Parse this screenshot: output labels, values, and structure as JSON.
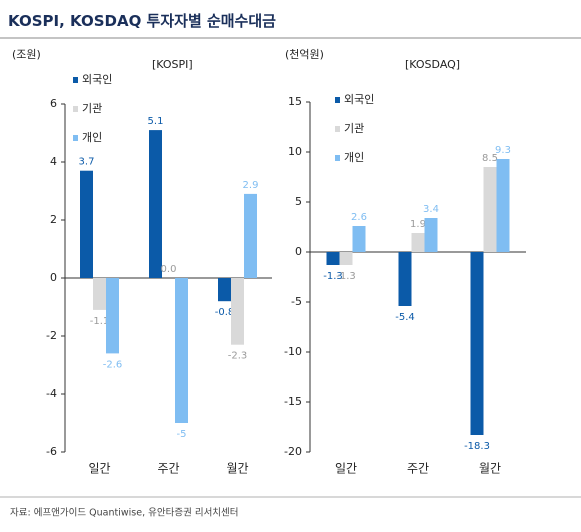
{
  "title": "KOSPI, KOSDAQ 투자자별 순매수대금",
  "source": "자료: 에프앤가이드 Quantiwise, 유안타증권 리서치센터",
  "chart_data": [
    {
      "type": "bar",
      "title": "[KOSPI]",
      "y_label": "(조원)",
      "categories": [
        "일간",
        "주간",
        "월간"
      ],
      "series": [
        {
          "name": "외국인",
          "color": "#0b5aa8",
          "values": [
            3.7,
            5.1,
            -0.8
          ]
        },
        {
          "name": "기관",
          "color": "#d9d9d9",
          "values": [
            -1.1,
            0,
            -2.3
          ],
          "value_labels": [
            "-1.1",
            "0.0",
            "-2.3"
          ]
        },
        {
          "name": "개인",
          "color": "#7fbdf2",
          "values": [
            -2.6,
            -5.0,
            2.9
          ]
        }
      ],
      "ylim": [
        -6,
        6
      ],
      "yticks": [
        -6,
        -4,
        -2,
        0,
        2,
        4,
        6
      ]
    },
    {
      "type": "bar",
      "title": "[KOSDAQ]",
      "y_label": "(천억원)",
      "categories": [
        "일간",
        "주간",
        "월간"
      ],
      "series": [
        {
          "name": "외국인",
          "color": "#0b5aa8",
          "values": [
            -1.3,
            -5.4,
            -18.3
          ]
        },
        {
          "name": "기관",
          "color": "#d9d9d9",
          "values": [
            -1.3,
            1.9,
            8.5
          ]
        },
        {
          "name": "개인",
          "color": "#7fbdf2",
          "values": [
            2.6,
            3.4,
            9.3
          ]
        }
      ],
      "ylim": [
        -20,
        15
      ],
      "yticks": [
        -20,
        -15,
        -10,
        -5,
        0,
        5,
        10,
        15
      ]
    }
  ]
}
